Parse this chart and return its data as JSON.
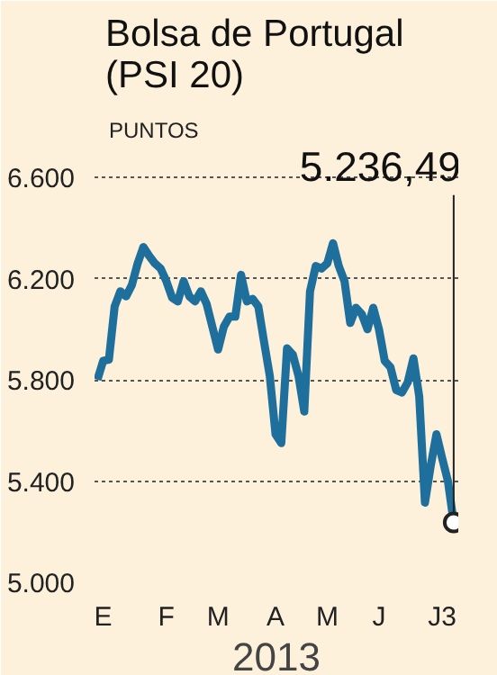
{
  "chart_data": {
    "type": "line",
    "title": "Bolsa de Portugal (PSI 20)",
    "ylabel": "PUNTOS",
    "xlabel": "2013",
    "categories": [
      null,
      "E",
      null,
      null,
      null,
      null,
      null,
      null,
      null,
      null,
      null,
      null,
      "F",
      null,
      null,
      null,
      null,
      null,
      null,
      null,
      null,
      "M",
      null,
      null,
      null,
      null,
      null,
      null,
      null,
      null,
      null,
      "A",
      null,
      null,
      null,
      null,
      null,
      null,
      null,
      null,
      "M",
      null,
      null,
      null,
      null,
      null,
      null,
      null,
      null,
      "J",
      null,
      null,
      null,
      null,
      null,
      null,
      null,
      null,
      null,
      null,
      "J3",
      null,
      null
    ],
    "series": [
      {
        "color": "#1f6f9c",
        "values": [
          5800,
          5875,
          5880,
          6090,
          6150,
          6130,
          6175,
          6260,
          6325,
          6290,
          6260,
          6240,
          6190,
          6125,
          6110,
          6190,
          6130,
          6110,
          6150,
          6100,
          6010,
          5920,
          6010,
          6050,
          6050,
          6215,
          6110,
          6120,
          6090,
          5950,
          5815,
          5585,
          5550,
          5925,
          5900,
          5815,
          5675,
          6150,
          6250,
          6240,
          6260,
          6340,
          6250,
          6190,
          6025,
          6085,
          6060,
          6000,
          6085,
          6000,
          5875,
          5850,
          5760,
          5750,
          5790,
          5885,
          5735,
          5315,
          5460,
          5585,
          5490,
          5400,
          5236.49
        ]
      }
    ],
    "ylim": [
      5000,
      6700
    ],
    "yticks": [
      {
        "value": 5000,
        "label": "5.000"
      },
      {
        "value": 5400,
        "label": "5.400"
      },
      {
        "value": 5800,
        "label": "5.800"
      },
      {
        "value": 6200,
        "label": "6.200"
      },
      {
        "value": 6600,
        "label": "6.600"
      }
    ],
    "grid": "y",
    "line_style": "solid",
    "annotations": [
      "5.236,49"
    ]
  }
}
